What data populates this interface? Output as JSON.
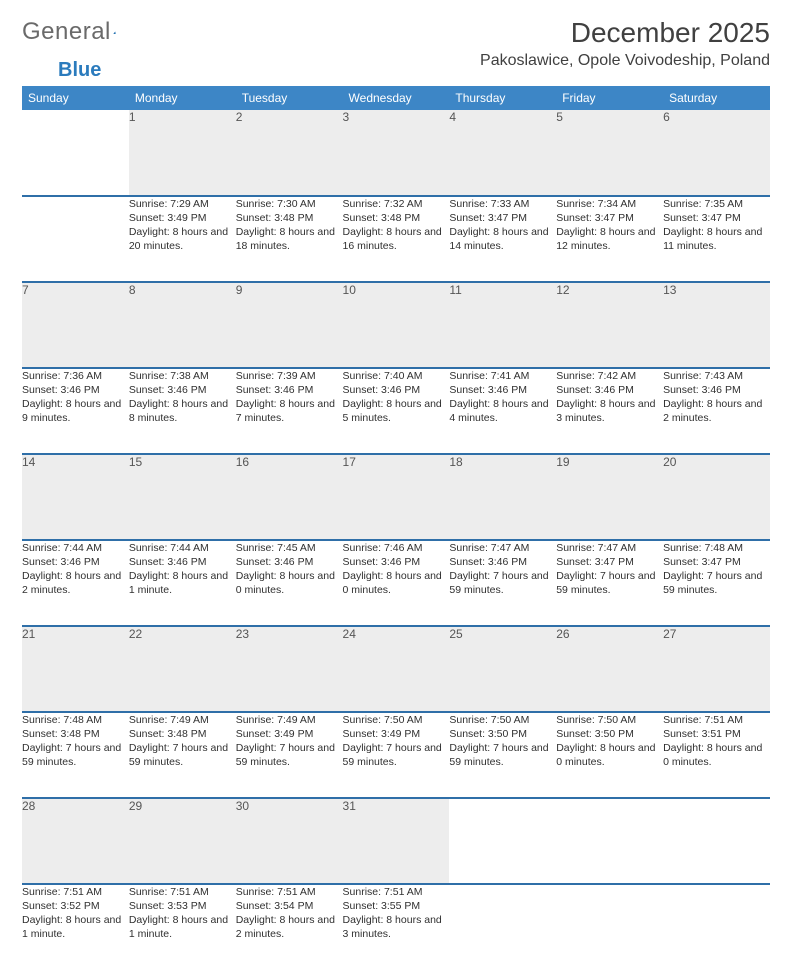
{
  "brand": {
    "part1": "General",
    "part2": "Blue"
  },
  "title": "December 2025",
  "location": "Pakoslawice, Opole Voivodeship, Poland",
  "colors": {
    "header_bg": "#3d86c6",
    "header_text": "#ffffff",
    "row_divider": "#2f6fa8",
    "daynum_bg": "#ededed",
    "text": "#303030",
    "brand_gray": "#6a6a6a",
    "brand_blue": "#2b7bbd",
    "page_bg": "#ffffff"
  },
  "typography": {
    "title_fontsize": 28,
    "location_fontsize": 16,
    "header_fontsize": 12,
    "daynum_fontsize": 12,
    "body_fontsize": 10.5
  },
  "week_labels": [
    "Sunday",
    "Monday",
    "Tuesday",
    "Wednesday",
    "Thursday",
    "Friday",
    "Saturday"
  ],
  "weeks": [
    {
      "nums": [
        "",
        "1",
        "2",
        "3",
        "4",
        "5",
        "6"
      ],
      "cells": [
        "",
        "Sunrise: 7:29 AM\nSunset: 3:49 PM\nDaylight: 8 hours and 20 minutes.",
        "Sunrise: 7:30 AM\nSunset: 3:48 PM\nDaylight: 8 hours and 18 minutes.",
        "Sunrise: 7:32 AM\nSunset: 3:48 PM\nDaylight: 8 hours and 16 minutes.",
        "Sunrise: 7:33 AM\nSunset: 3:47 PM\nDaylight: 8 hours and 14 minutes.",
        "Sunrise: 7:34 AM\nSunset: 3:47 PM\nDaylight: 8 hours and 12 minutes.",
        "Sunrise: 7:35 AM\nSunset: 3:47 PM\nDaylight: 8 hours and 11 minutes."
      ]
    },
    {
      "nums": [
        "7",
        "8",
        "9",
        "10",
        "11",
        "12",
        "13"
      ],
      "cells": [
        "Sunrise: 7:36 AM\nSunset: 3:46 PM\nDaylight: 8 hours and 9 minutes.",
        "Sunrise: 7:38 AM\nSunset: 3:46 PM\nDaylight: 8 hours and 8 minutes.",
        "Sunrise: 7:39 AM\nSunset: 3:46 PM\nDaylight: 8 hours and 7 minutes.",
        "Sunrise: 7:40 AM\nSunset: 3:46 PM\nDaylight: 8 hours and 5 minutes.",
        "Sunrise: 7:41 AM\nSunset: 3:46 PM\nDaylight: 8 hours and 4 minutes.",
        "Sunrise: 7:42 AM\nSunset: 3:46 PM\nDaylight: 8 hours and 3 minutes.",
        "Sunrise: 7:43 AM\nSunset: 3:46 PM\nDaylight: 8 hours and 2 minutes."
      ]
    },
    {
      "nums": [
        "14",
        "15",
        "16",
        "17",
        "18",
        "19",
        "20"
      ],
      "cells": [
        "Sunrise: 7:44 AM\nSunset: 3:46 PM\nDaylight: 8 hours and 2 minutes.",
        "Sunrise: 7:44 AM\nSunset: 3:46 PM\nDaylight: 8 hours and 1 minute.",
        "Sunrise: 7:45 AM\nSunset: 3:46 PM\nDaylight: 8 hours and 0 minutes.",
        "Sunrise: 7:46 AM\nSunset: 3:46 PM\nDaylight: 8 hours and 0 minutes.",
        "Sunrise: 7:47 AM\nSunset: 3:46 PM\nDaylight: 7 hours and 59 minutes.",
        "Sunrise: 7:47 AM\nSunset: 3:47 PM\nDaylight: 7 hours and 59 minutes.",
        "Sunrise: 7:48 AM\nSunset: 3:47 PM\nDaylight: 7 hours and 59 minutes."
      ]
    },
    {
      "nums": [
        "21",
        "22",
        "23",
        "24",
        "25",
        "26",
        "27"
      ],
      "cells": [
        "Sunrise: 7:48 AM\nSunset: 3:48 PM\nDaylight: 7 hours and 59 minutes.",
        "Sunrise: 7:49 AM\nSunset: 3:48 PM\nDaylight: 7 hours and 59 minutes.",
        "Sunrise: 7:49 AM\nSunset: 3:49 PM\nDaylight: 7 hours and 59 minutes.",
        "Sunrise: 7:50 AM\nSunset: 3:49 PM\nDaylight: 7 hours and 59 minutes.",
        "Sunrise: 7:50 AM\nSunset: 3:50 PM\nDaylight: 7 hours and 59 minutes.",
        "Sunrise: 7:50 AM\nSunset: 3:50 PM\nDaylight: 8 hours and 0 minutes.",
        "Sunrise: 7:51 AM\nSunset: 3:51 PM\nDaylight: 8 hours and 0 minutes."
      ]
    },
    {
      "nums": [
        "28",
        "29",
        "30",
        "31",
        "",
        "",
        ""
      ],
      "cells": [
        "Sunrise: 7:51 AM\nSunset: 3:52 PM\nDaylight: 8 hours and 1 minute.",
        "Sunrise: 7:51 AM\nSunset: 3:53 PM\nDaylight: 8 hours and 1 minute.",
        "Sunrise: 7:51 AM\nSunset: 3:54 PM\nDaylight: 8 hours and 2 minutes.",
        "Sunrise: 7:51 AM\nSunset: 3:55 PM\nDaylight: 8 hours and 3 minutes.",
        "",
        "",
        ""
      ]
    }
  ]
}
